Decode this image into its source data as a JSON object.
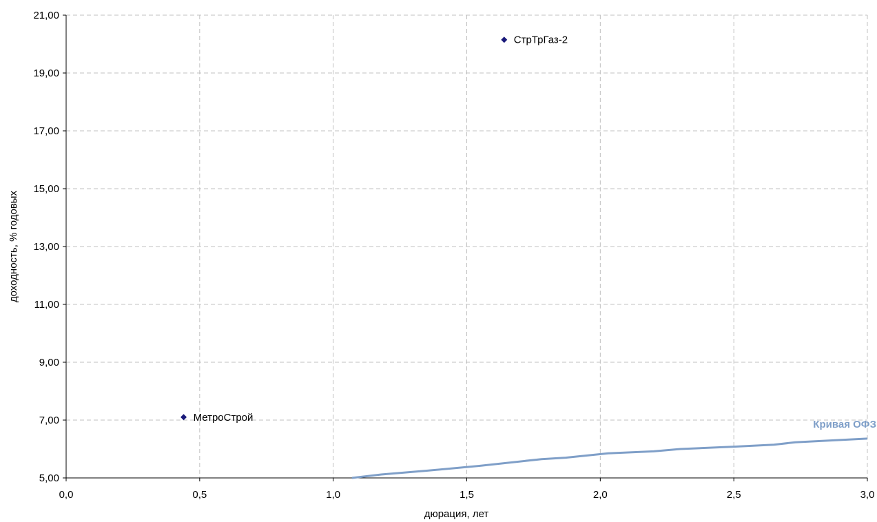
{
  "chart_data": {
    "type": "scatter",
    "xlabel": "дюрация, лет",
    "ylabel": "доходность, % годовых",
    "xlim": [
      0,
      3
    ],
    "ylim": [
      5,
      21
    ],
    "x_ticks": [
      "0,0",
      "0,5",
      "1,0",
      "1,5",
      "2,0",
      "2,5",
      "3,0"
    ],
    "y_ticks": [
      "5,00",
      "7,00",
      "9,00",
      "11,00",
      "13,00",
      "15,00",
      "17,00",
      "19,00",
      "21,00"
    ],
    "grid": true,
    "points": [
      {
        "label": "МетроСтрой",
        "x": 0.44,
        "y": 7.1
      },
      {
        "label": "СтрТрГаз-2",
        "x": 1.64,
        "y": 20.15
      }
    ],
    "curve": {
      "name": "Кривая ОФЗ",
      "color": "#7f9fc8",
      "x": [
        1.07,
        1.18,
        1.35,
        1.55,
        1.78,
        1.87,
        2.03,
        2.2,
        2.3,
        2.5,
        2.65,
        2.73,
        3.0
      ],
      "y": [
        4.98,
        5.12,
        5.25,
        5.42,
        5.65,
        5.7,
        5.85,
        5.92,
        6.0,
        6.08,
        6.15,
        6.23,
        6.36
      ]
    },
    "marker_color": "#1a1a7a"
  }
}
